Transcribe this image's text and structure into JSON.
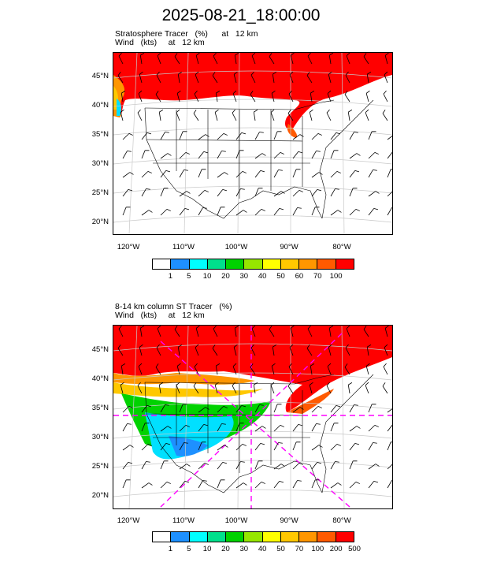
{
  "title": "2025-08-21_18:00:00",
  "panels": [
    {
      "title_line1": "Stratosphere Tracer   (%)      at   12 km",
      "title_line2": "Wind   (kts)     at   12 km",
      "lat_labels": [
        "45°N",
        "40°N",
        "35°N",
        "30°N",
        "25°N",
        "20°N"
      ],
      "lon_labels": [
        "120°W",
        "110°W",
        "100°W",
        "90°W",
        "80°W"
      ],
      "colorbar_labels": [
        "1",
        "5",
        "10",
        "20",
        "30",
        "40",
        "50",
        "60",
        "70",
        "100"
      ]
    },
    {
      "title_line1": "8-14 km column ST Tracer   (%)",
      "title_line2": "Wind   (kts)     at   12 km",
      "lat_labels": [
        "45°N",
        "40°N",
        "35°N",
        "30°N",
        "25°N",
        "20°N"
      ],
      "lon_labels": [
        "120°W",
        "110°W",
        "100°W",
        "90°W",
        "80°W"
      ],
      "colorbar_labels": [
        "1",
        "5",
        "10",
        "20",
        "30",
        "40",
        "50",
        "70",
        "100",
        "200",
        "500"
      ]
    }
  ],
  "colors": {
    "colorbar1": [
      "#ffffff",
      "#1e90ff",
      "#00ffff",
      "#00e08c",
      "#00d200",
      "#96e600",
      "#ffff00",
      "#ffc800",
      "#ff9600",
      "#ff5a00",
      "#ff0000"
    ],
    "colorbar2": [
      "#ffffff",
      "#1e90ff",
      "#00ffff",
      "#00e08c",
      "#00d200",
      "#96e600",
      "#ffff00",
      "#ffc800",
      "#ff9600",
      "#ff5a00",
      "#ff0000"
    ],
    "tracer_high": "#ff0000",
    "cross_section_line": "#ff00ff"
  }
}
